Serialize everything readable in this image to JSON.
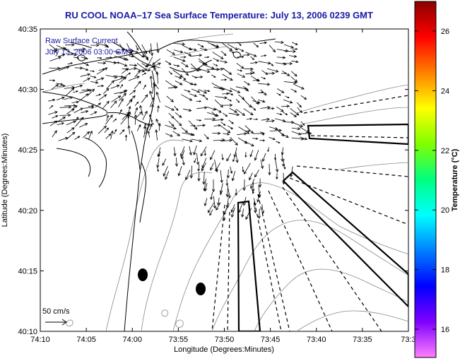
{
  "title": "RU COOL  NOAA–17  Sea Surface Temperature:  July 13, 2006 0239 GMT",
  "overlay": {
    "line1": "Raw Surface Current",
    "line2": "July 13, 2006 03:00 GMT"
  },
  "axes": {
    "xlabel": "Longitude (Degrees:Minutes)",
    "ylabel": "Latitude (Degrees:Minutes)",
    "xticks": [
      "74:10",
      "74:05",
      "74:00",
      "73:55",
      "73:50",
      "73:45",
      "73:40",
      "73:35",
      "73:3"
    ],
    "yticks": [
      "40:35",
      "40:30",
      "40:25",
      "40:20",
      "40:15",
      "40:10"
    ]
  },
  "scale_label": "50 cm/s",
  "colorbar": {
    "label": "Temperature (°C)",
    "ticks": [
      "26",
      "24",
      "22",
      "20",
      "18",
      "16"
    ],
    "colors": [
      "#8b0000",
      "#ff0000",
      "#ff8000",
      "#ffff00",
      "#80ff00",
      "#00ff80",
      "#00ffff",
      "#0080ff",
      "#0000ff",
      "#8000ff",
      "#ff80ff"
    ]
  },
  "map": {
    "land_line_color": "#000000",
    "bathymetry_color": "#888888",
    "vector_color": "#000000"
  }
}
